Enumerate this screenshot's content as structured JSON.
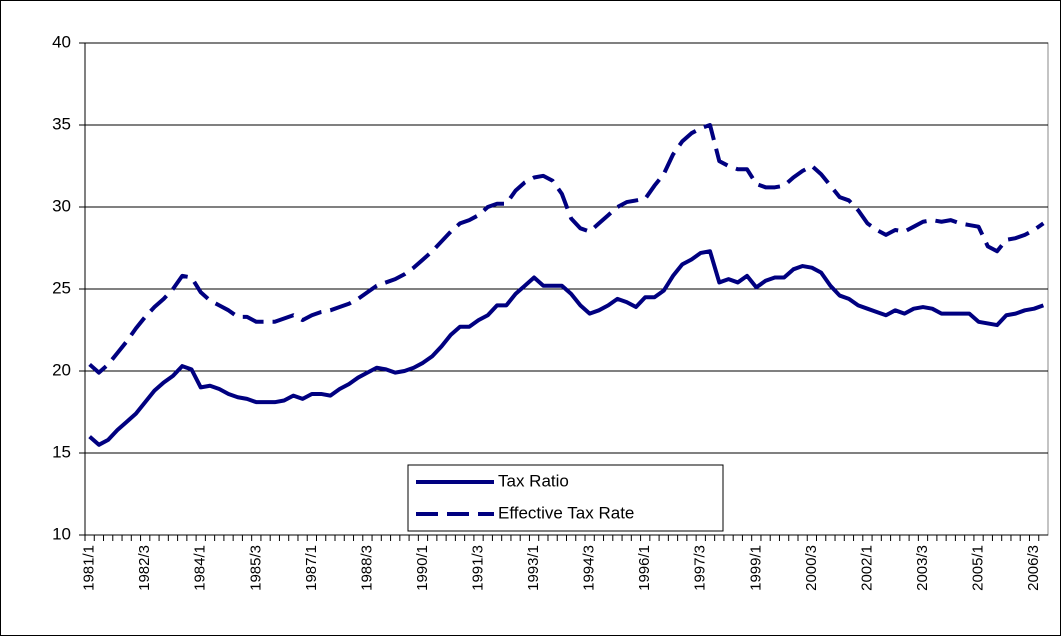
{
  "chart_data": {
    "type": "line",
    "categories": [
      "1981/1",
      null,
      null,
      null,
      null,
      null,
      "1982/3",
      null,
      null,
      null,
      null,
      null,
      "1984/1",
      null,
      null,
      null,
      null,
      null,
      "1985/3",
      null,
      null,
      null,
      null,
      null,
      "1987/1",
      null,
      null,
      null,
      null,
      null,
      "1988/3",
      null,
      null,
      null,
      null,
      null,
      "1990/1",
      null,
      null,
      null,
      null,
      null,
      "1991/3",
      null,
      null,
      null,
      null,
      null,
      "1993/1",
      null,
      null,
      null,
      null,
      null,
      "1994/3",
      null,
      null,
      null,
      null,
      null,
      "1996/1",
      null,
      null,
      null,
      null,
      null,
      "1997/3",
      null,
      null,
      null,
      null,
      null,
      "1999/1",
      null,
      null,
      null,
      null,
      null,
      "2000/3",
      null,
      null,
      null,
      null,
      null,
      "2002/1",
      null,
      null,
      null,
      null,
      null,
      "2003/3",
      null,
      null,
      null,
      null,
      null,
      "2005/1",
      null,
      null,
      null,
      null,
      null,
      "2006/3",
      null
    ],
    "series": [
      {
        "name": "Tax Ratio",
        "color": "#000080",
        "dashed": false,
        "values": [
          16.0,
          15.5,
          15.8,
          16.4,
          16.9,
          17.4,
          18.1,
          18.8,
          19.3,
          19.7,
          20.3,
          20.1,
          19.0,
          19.1,
          18.9,
          18.6,
          18.4,
          18.3,
          18.1,
          18.1,
          18.1,
          18.2,
          18.5,
          18.3,
          18.6,
          18.6,
          18.5,
          18.9,
          19.2,
          19.6,
          19.9,
          20.2,
          20.1,
          19.9,
          20.0,
          20.2,
          20.5,
          20.9,
          21.5,
          22.2,
          22.7,
          22.7,
          23.1,
          23.4,
          24.0,
          24.0,
          24.7,
          25.2,
          25.7,
          25.2,
          25.2,
          25.2,
          24.7,
          24.0,
          23.5,
          23.7,
          24.0,
          24.4,
          24.2,
          23.9,
          24.5,
          24.5,
          24.9,
          25.8,
          26.5,
          26.8,
          27.2,
          27.3,
          25.4,
          25.6,
          25.4,
          25.8,
          25.1,
          25.5,
          25.7,
          25.7,
          26.2,
          26.4,
          26.3,
          26.0,
          25.2,
          24.6,
          24.4,
          24.0,
          23.8,
          23.6,
          23.4,
          23.7,
          23.5,
          23.8,
          23.9,
          23.8,
          23.5,
          23.5,
          23.5,
          23.5,
          23.0,
          22.9,
          22.8,
          23.4,
          23.5,
          23.7,
          23.8,
          24.0
        ]
      },
      {
        "name": "Effective Tax Rate",
        "color": "#000080",
        "dashed": true,
        "values": [
          20.4,
          19.9,
          20.4,
          21.1,
          21.8,
          22.6,
          23.3,
          23.9,
          24.4,
          25.0,
          25.8,
          25.7,
          24.8,
          24.3,
          24.0,
          23.7,
          23.3,
          23.3,
          23.0,
          23.0,
          23.0,
          23.2,
          23.4,
          23.1,
          23.4,
          23.6,
          23.7,
          23.9,
          24.1,
          24.4,
          24.8,
          25.2,
          25.4,
          25.6,
          25.9,
          26.3,
          26.8,
          27.3,
          27.9,
          28.5,
          29.0,
          29.2,
          29.5,
          30.0,
          30.2,
          30.2,
          31.0,
          31.5,
          31.8,
          31.9,
          31.6,
          30.8,
          29.3,
          28.7,
          28.5,
          29.0,
          29.5,
          30.0,
          30.3,
          30.4,
          30.5,
          31.3,
          32.0,
          33.2,
          34.0,
          34.5,
          34.8,
          35.0,
          32.8,
          32.5,
          32.3,
          32.3,
          31.4,
          31.2,
          31.2,
          31.3,
          31.8,
          32.2,
          32.5,
          32.0,
          31.3,
          30.6,
          30.4,
          29.8,
          29.0,
          28.6,
          28.3,
          28.6,
          28.5,
          28.8,
          29.1,
          29.2,
          29.1,
          29.2,
          29.0,
          28.9,
          28.8,
          27.6,
          27.3,
          28.0,
          28.1,
          28.3,
          28.6,
          29.0
        ]
      }
    ],
    "ylim": [
      10,
      40
    ],
    "yticks": [
      10,
      15,
      20,
      25,
      30,
      35,
      40
    ],
    "grid": true,
    "legend": "lower center"
  }
}
